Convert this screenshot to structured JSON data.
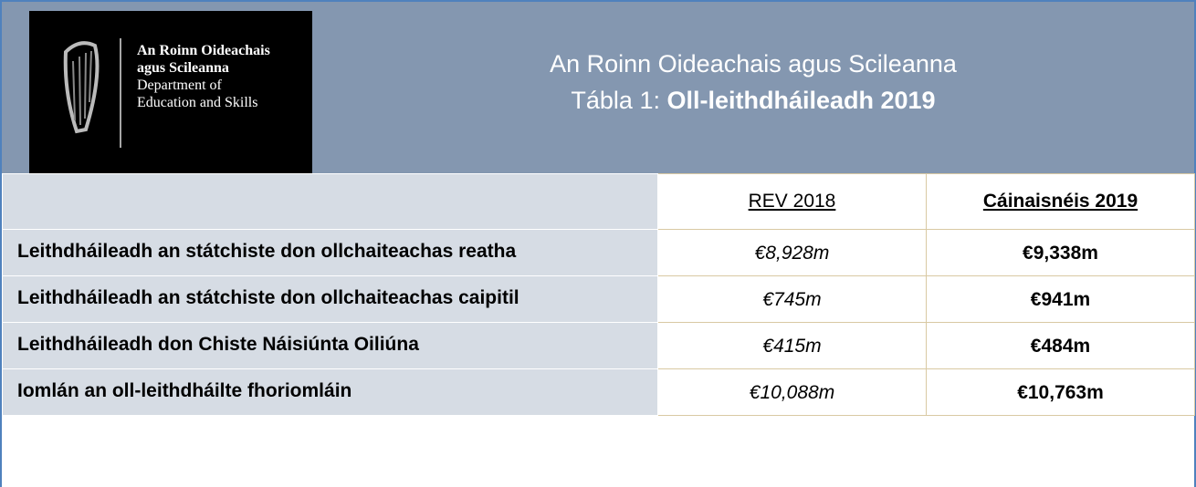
{
  "header": {
    "logo_lines": [
      "An Roinn Oideachais",
      "agus Scileanna",
      "Department of",
      "Education and Skills"
    ],
    "title": "An Roinn Oideachais agus Scileanna",
    "subtitle_prefix": "Tábla 1:",
    "subtitle_bold": "Oll-leithdháileadh 2019"
  },
  "table": {
    "columns": [
      "REV 2018",
      "Cáinaisnéis 2019"
    ],
    "rows": [
      [
        "Leithdháileadh an státchiste don ollchaiteachas reatha",
        "€8,928m",
        "€9,338m"
      ],
      [
        "Leithdháileadh an státchiste don ollchaiteachas caipitil",
        "€745m",
        "€941m"
      ],
      [
        "Leithdháileadh don Chiste Náisiúnta Oiliúna",
        "€415m",
        "€484m"
      ],
      [
        "Iomlán an oll-leithdháilte fhoriomláin",
        "€10,088m",
        "€10,763m"
      ]
    ]
  }
}
